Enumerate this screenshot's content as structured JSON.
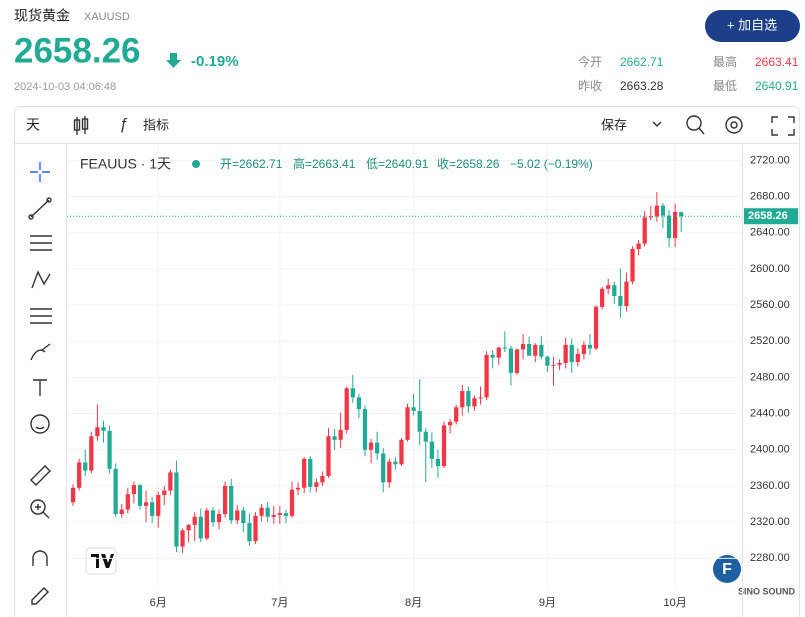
{
  "header": {
    "title": "现货黄金",
    "symbol": "XAUUSD",
    "price": "2658.26",
    "change": "-0.19%",
    "datetime": "2024-10-03 04:06:48",
    "button": "+ 加自选",
    "stats": [
      {
        "label": "今开",
        "value": "2662.71"
      },
      {
        "label": "最高",
        "value": "2663.41"
      },
      {
        "label": "昨收",
        "value": "2663.28"
      },
      {
        "label": "最低",
        "value": "2640.91"
      }
    ]
  },
  "toolbar": {
    "interval": "天",
    "indicators": "指标",
    "save": "保存"
  },
  "watermark": "SINO SOUND",
  "chart_data": {
    "type": "candlestick",
    "legend_title": "FEAUUS · 1天",
    "legend_items": [
      "开=2662.71",
      "高=2663.41",
      "低=2640.91",
      "收=2658.26",
      "−5.02 (−0.19%)"
    ],
    "up_color": "#f23645",
    "down_color": "#22ab94",
    "grid": true,
    "last_price": 2658.26,
    "ylim": [
      2245,
      2737
    ],
    "yticks": [
      {
        "value": 2280,
        "label": "2280.00"
      },
      {
        "value": 2320,
        "label": "2320.00"
      },
      {
        "value": 2360,
        "label": "2360.00"
      },
      {
        "value": 2400,
        "label": "2400.00"
      },
      {
        "value": 2440,
        "label": "2440.00"
      },
      {
        "value": 2480,
        "label": "2480.00"
      },
      {
        "value": 2520,
        "label": "2520.00"
      },
      {
        "value": 2560,
        "label": "2560.00"
      },
      {
        "value": 2600,
        "label": "2600.00"
      },
      {
        "value": 2640,
        "label": "2640.00"
      },
      {
        "value": 2680,
        "label": "2680.00"
      },
      {
        "value": 2720,
        "label": "2720.00"
      }
    ],
    "xlim": [
      -1,
      110
    ],
    "xticks": [
      {
        "value": 14,
        "label": "6月"
      },
      {
        "value": 34,
        "label": "7月"
      },
      {
        "value": 56,
        "label": "8月"
      },
      {
        "value": 78,
        "label": "9月"
      },
      {
        "value": 99,
        "label": "10月"
      }
    ],
    "ohlc": [
      [
        2342,
        2362,
        2338,
        2358
      ],
      [
        2358,
        2390,
        2355,
        2386
      ],
      [
        2386,
        2400,
        2371,
        2377
      ],
      [
        2377,
        2420,
        2374,
        2415
      ],
      [
        2415,
        2450,
        2410,
        2425
      ],
      [
        2425,
        2432,
        2408,
        2421
      ],
      [
        2421,
        2427,
        2374,
        2379
      ],
      [
        2379,
        2385,
        2326,
        2329
      ],
      [
        2329,
        2340,
        2325,
        2334
      ],
      [
        2334,
        2358,
        2330,
        2351
      ],
      [
        2351,
        2365,
        2341,
        2361
      ],
      [
        2361,
        2362,
        2334,
        2338
      ],
      [
        2338,
        2355,
        2320,
        2342
      ],
      [
        2342,
        2348,
        2319,
        2327
      ],
      [
        2327,
        2354,
        2314,
        2350
      ],
      [
        2350,
        2360,
        2339,
        2355
      ],
      [
        2355,
        2378,
        2350,
        2375
      ],
      [
        2375,
        2388,
        2287,
        2293
      ],
      [
        2293,
        2313,
        2286,
        2311
      ],
      [
        2311,
        2318,
        2298,
        2317
      ],
      [
        2317,
        2331,
        2299,
        2326
      ],
      [
        2326,
        2335,
        2298,
        2302
      ],
      [
        2302,
        2336,
        2300,
        2333
      ],
      [
        2333,
        2337,
        2315,
        2320
      ],
      [
        2320,
        2334,
        2312,
        2329
      ],
      [
        2329,
        2365,
        2325,
        2360
      ],
      [
        2360,
        2368,
        2318,
        2322
      ],
      [
        2322,
        2339,
        2318,
        2333
      ],
      [
        2333,
        2337,
        2309,
        2319
      ],
      [
        2319,
        2330,
        2294,
        2299
      ],
      [
        2299,
        2331,
        2296,
        2327
      ],
      [
        2327,
        2340,
        2321,
        2336
      ],
      [
        2336,
        2342,
        2320,
        2326
      ],
      [
        2326,
        2338,
        2318,
        2328
      ],
      [
        2328,
        2338,
        2318,
        2330
      ],
      [
        2330,
        2334,
        2319,
        2327
      ],
      [
        2327,
        2365,
        2325,
        2356
      ],
      [
        2356,
        2364,
        2350,
        2358
      ],
      [
        2358,
        2392,
        2352,
        2390
      ],
      [
        2390,
        2393,
        2353,
        2359
      ],
      [
        2359,
        2368,
        2353,
        2364
      ],
      [
        2364,
        2376,
        2360,
        2371
      ],
      [
        2371,
        2424,
        2369,
        2415
      ],
      [
        2415,
        2423,
        2400,
        2411
      ],
      [
        2411,
        2441,
        2402,
        2422
      ],
      [
        2422,
        2470,
        2418,
        2468
      ],
      [
        2468,
        2483,
        2452,
        2458
      ],
      [
        2458,
        2462,
        2435,
        2445
      ],
      [
        2445,
        2449,
        2393,
        2400
      ],
      [
        2400,
        2412,
        2385,
        2408
      ],
      [
        2408,
        2420,
        2389,
        2396
      ],
      [
        2396,
        2402,
        2353,
        2364
      ],
      [
        2364,
        2390,
        2358,
        2387
      ],
      [
        2387,
        2392,
        2378,
        2384
      ],
      [
        2384,
        2413,
        2382,
        2411
      ],
      [
        2411,
        2451,
        2409,
        2447
      ],
      [
        2447,
        2462,
        2438,
        2443
      ],
      [
        2443,
        2478,
        2405,
        2420
      ],
      [
        2420,
        2424,
        2364,
        2409
      ],
      [
        2409,
        2419,
        2380,
        2390
      ],
      [
        2390,
        2400,
        2369,
        2382
      ],
      [
        2382,
        2431,
        2380,
        2427
      ],
      [
        2427,
        2434,
        2418,
        2431
      ],
      [
        2431,
        2450,
        2428,
        2447
      ],
      [
        2447,
        2472,
        2438,
        2465
      ],
      [
        2465,
        2470,
        2441,
        2448
      ],
      [
        2448,
        2460,
        2443,
        2457
      ],
      [
        2457,
        2470,
        2450,
        2458
      ],
      [
        2458,
        2509,
        2455,
        2505
      ],
      [
        2505,
        2510,
        2490,
        2502
      ],
      [
        2502,
        2514,
        2494,
        2513
      ],
      [
        2513,
        2531,
        2508,
        2512
      ],
      [
        2512,
        2515,
        2471,
        2485
      ],
      [
        2485,
        2512,
        2483,
        2511
      ],
      [
        2511,
        2528,
        2500,
        2517
      ],
      [
        2517,
        2525,
        2504,
        2504
      ],
      [
        2504,
        2518,
        2497,
        2516
      ],
      [
        2516,
        2526,
        2500,
        2503
      ],
      [
        2503,
        2504,
        2486,
        2493
      ],
      [
        2493,
        2503,
        2471,
        2494
      ],
      [
        2494,
        2500,
        2488,
        2496
      ],
      [
        2496,
        2524,
        2490,
        2516
      ],
      [
        2516,
        2523,
        2485,
        2497
      ],
      [
        2497,
        2512,
        2492,
        2506
      ],
      [
        2506,
        2520,
        2500,
        2516
      ],
      [
        2516,
        2528,
        2505,
        2512
      ],
      [
        2512,
        2560,
        2510,
        2558
      ],
      [
        2558,
        2580,
        2555,
        2578
      ],
      [
        2578,
        2589,
        2572,
        2582
      ],
      [
        2582,
        2586,
        2561,
        2570
      ],
      [
        2570,
        2600,
        2546,
        2559
      ],
      [
        2559,
        2596,
        2553,
        2586
      ],
      [
        2586,
        2625,
        2583,
        2622
      ],
      [
        2622,
        2632,
        2615,
        2628
      ],
      [
        2628,
        2664,
        2625,
        2657
      ],
      [
        2657,
        2670,
        2654,
        2658
      ],
      [
        2658,
        2685,
        2652,
        2670
      ],
      [
        2670,
        2673,
        2645,
        2659
      ],
      [
        2659,
        2665,
        2624,
        2634
      ],
      [
        2634,
        2672,
        2624,
        2663
      ],
      [
        2662.71,
        2663.41,
        2640.91,
        2658.26
      ]
    ]
  }
}
